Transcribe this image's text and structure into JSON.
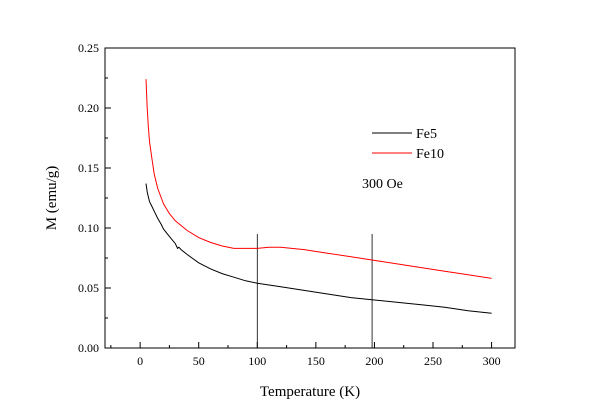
{
  "chart_data": {
    "type": "line",
    "xlabel": "Temperature (K)",
    "ylabel": "M (emu/g)",
    "xlim": [
      -30,
      320
    ],
    "ylim": [
      0,
      0.25
    ],
    "x_ticks": [
      0,
      50,
      100,
      150,
      200,
      250,
      300
    ],
    "x_tick_labels": [
      "0",
      "50",
      "100",
      "150",
      "200",
      "250",
      "300"
    ],
    "y_ticks": [
      0,
      0.05,
      0.1,
      0.15,
      0.2,
      0.25
    ],
    "y_tick_labels": [
      "0.00",
      "0.05",
      "0.10",
      "0.15",
      "0.20",
      "0.25"
    ],
    "grid": false,
    "legend_position": "right",
    "annotation": "300 Oe",
    "vertical_markers": [
      100,
      198
    ],
    "series": [
      {
        "name": "Fe5",
        "color": "#000000",
        "points": [
          [
            5,
            0.137
          ],
          [
            6,
            0.13
          ],
          [
            8,
            0.122
          ],
          [
            10,
            0.118
          ],
          [
            12,
            0.114
          ],
          [
            15,
            0.108
          ],
          [
            18,
            0.103
          ],
          [
            20,
            0.099
          ],
          [
            25,
            0.093
          ],
          [
            30,
            0.087
          ],
          [
            32,
            0.083
          ],
          [
            33,
            0.084
          ],
          [
            35,
            0.082
          ],
          [
            40,
            0.078
          ],
          [
            50,
            0.071
          ],
          [
            60,
            0.066
          ],
          [
            70,
            0.062
          ],
          [
            80,
            0.059
          ],
          [
            90,
            0.056
          ],
          [
            100,
            0.054
          ],
          [
            120,
            0.051
          ],
          [
            140,
            0.048
          ],
          [
            160,
            0.045
          ],
          [
            180,
            0.042
          ],
          [
            200,
            0.04
          ],
          [
            220,
            0.038
          ],
          [
            240,
            0.036
          ],
          [
            260,
            0.034
          ],
          [
            280,
            0.031
          ],
          [
            300,
            0.029
          ]
        ]
      },
      {
        "name": "Fe10",
        "color": "#ff0000",
        "points": [
          [
            5,
            0.224
          ],
          [
            6,
            0.2
          ],
          [
            7,
            0.185
          ],
          [
            8,
            0.172
          ],
          [
            10,
            0.158
          ],
          [
            12,
            0.145
          ],
          [
            15,
            0.133
          ],
          [
            20,
            0.12
          ],
          [
            25,
            0.112
          ],
          [
            30,
            0.106
          ],
          [
            40,
            0.098
          ],
          [
            50,
            0.092
          ],
          [
            60,
            0.088
          ],
          [
            70,
            0.085
          ],
          [
            80,
            0.083
          ],
          [
            90,
            0.083
          ],
          [
            100,
            0.083
          ],
          [
            110,
            0.084
          ],
          [
            120,
            0.084
          ],
          [
            140,
            0.082
          ],
          [
            160,
            0.079
          ],
          [
            180,
            0.076
          ],
          [
            200,
            0.073
          ],
          [
            220,
            0.07
          ],
          [
            240,
            0.067
          ],
          [
            260,
            0.064
          ],
          [
            280,
            0.061
          ],
          [
            300,
            0.058
          ]
        ]
      }
    ]
  }
}
